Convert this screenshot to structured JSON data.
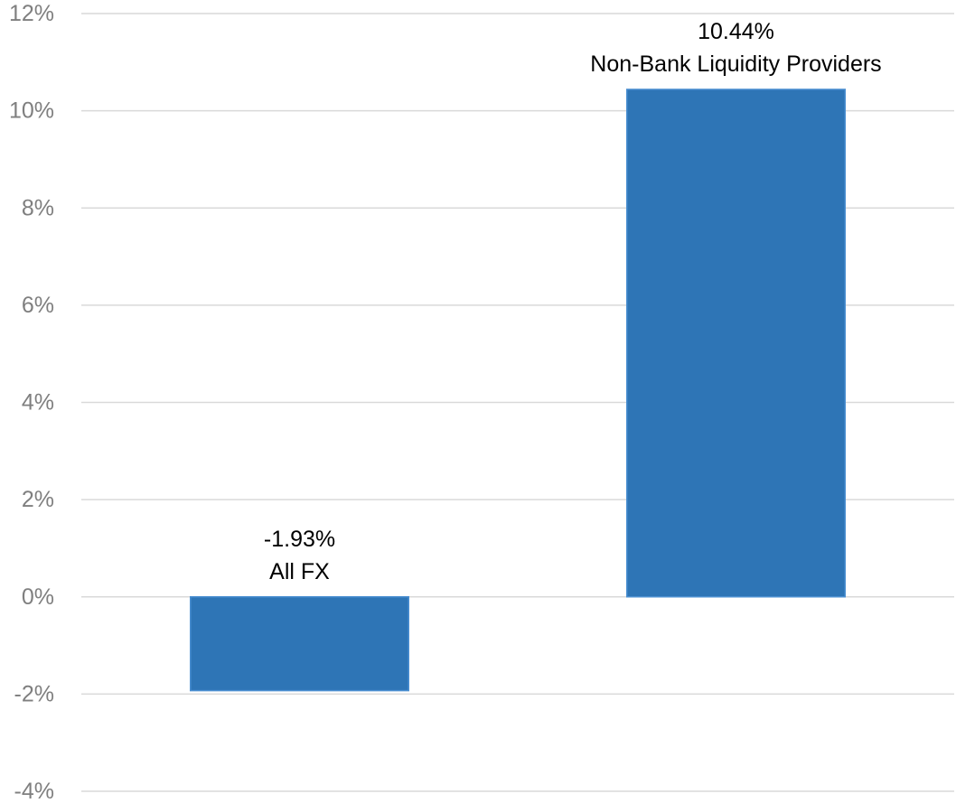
{
  "chart_data": {
    "type": "bar",
    "categories": [
      "All FX",
      "Non-Bank Liquidity Providers"
    ],
    "values": [
      -1.93,
      10.44
    ],
    "value_labels": [
      "-1.93%",
      "10.44%"
    ],
    "title": "",
    "xlabel": "",
    "ylabel": "",
    "ylim": [
      -4,
      12
    ],
    "y_ticks": [
      12,
      10,
      8,
      6,
      4,
      2,
      0,
      -2,
      -4
    ],
    "y_tick_labels": [
      "12%",
      "10%",
      "8%",
      "6%",
      "4%",
      "2%",
      "0%",
      "-2%",
      "-4%"
    ],
    "grid": true,
    "legend": "none",
    "bar_color": "#2e75b6",
    "bar_edge_color": "#4a8fd1",
    "gridline_color": "#d9d9d9",
    "tick_label_color": "#7f7f7f",
    "data_label_color": "#000000"
  }
}
